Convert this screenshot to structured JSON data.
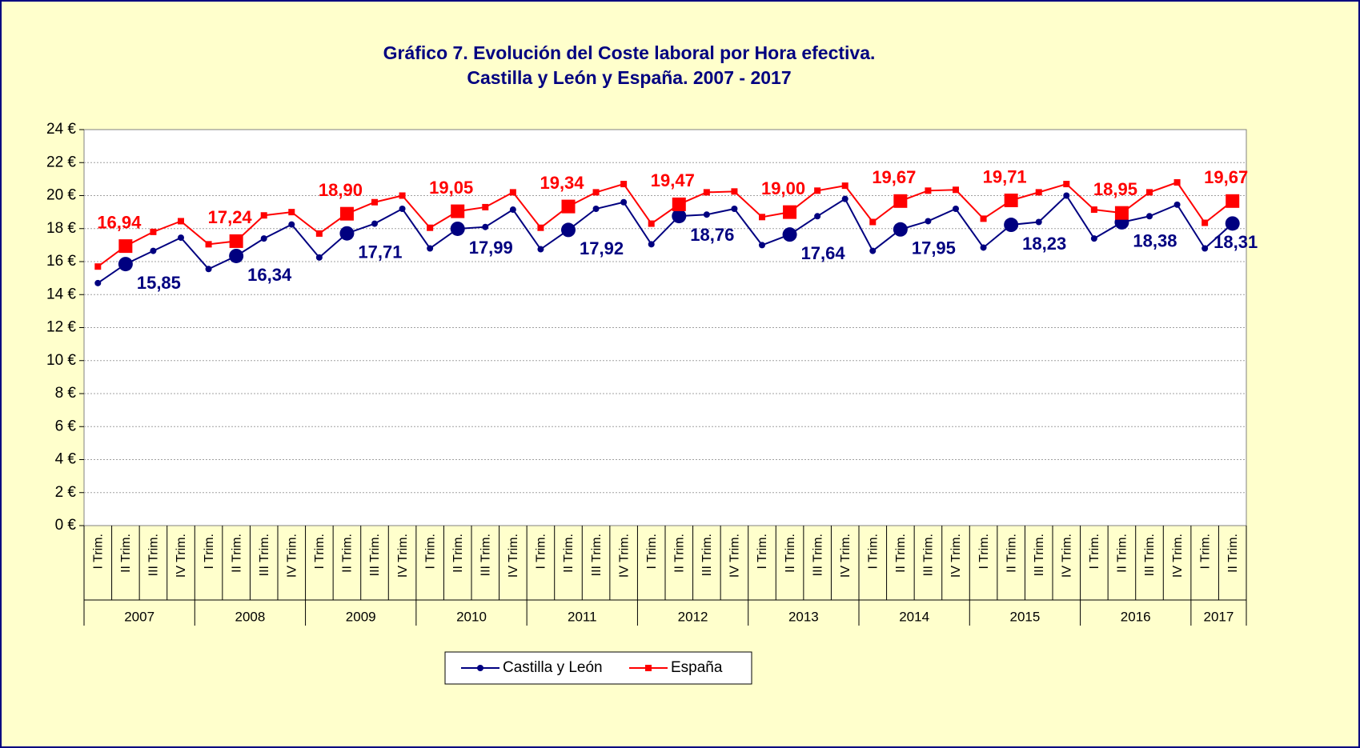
{
  "chart_data": {
    "type": "line",
    "title": "Gráfico 7. Evolución del Coste laboral por Hora efectiva.",
    "subtitle": "Castilla y León y España. 2007 - 2017",
    "categories": [
      "I Trim.",
      "II Trim.",
      "III Trim.",
      "IV Trim.",
      "I Trim.",
      "II Trim.",
      "III Trim.",
      "IV Trim.",
      "I Trim.",
      "II Trim.",
      "III Trim.",
      "IV Trim.",
      "I Trim.",
      "II Trim.",
      "III Trim.",
      "IV Trim.",
      "I Trim.",
      "II Trim.",
      "III Trim.",
      "IV Trim.",
      "I Trim.",
      "II Trim.",
      "III Trim.",
      "IV Trim.",
      "I Trim.",
      "II Trim.",
      "III Trim.",
      "IV Trim.",
      "I Trim.",
      "II Trim.",
      "III Trim.",
      "IV Trim.",
      "I Trim.",
      "II Trim.",
      "III Trim.",
      "IV Trim.",
      "I Trim.",
      "II Trim.",
      "III Trim.",
      "IV Trim.",
      "I Trim.",
      "II Trim."
    ],
    "year_groups": [
      "2007",
      "2008",
      "2009",
      "2010",
      "2011",
      "2012",
      "2013",
      "2014",
      "2015",
      "2016",
      "2017"
    ],
    "series": [
      {
        "name": "Castilla y León",
        "color": "#000080",
        "values": [
          14.7,
          15.85,
          16.65,
          17.45,
          15.55,
          16.34,
          17.4,
          18.25,
          16.25,
          17.71,
          18.3,
          19.2,
          16.8,
          17.99,
          18.1,
          19.15,
          16.75,
          17.92,
          19.2,
          19.6,
          17.05,
          18.76,
          18.85,
          19.2,
          17.0,
          17.64,
          18.75,
          19.8,
          16.65,
          17.95,
          18.45,
          19.2,
          16.85,
          18.23,
          18.4,
          20.0,
          17.4,
          18.38,
          18.75,
          19.45,
          16.8,
          18.31
        ],
        "value_labels": [
          null,
          "15,85",
          null,
          null,
          null,
          "16,34",
          null,
          null,
          null,
          "17,71",
          null,
          null,
          null,
          "17,99",
          null,
          null,
          null,
          "17,92",
          null,
          null,
          null,
          "18,76",
          null,
          null,
          null,
          "17,64",
          null,
          null,
          null,
          "17,95",
          null,
          null,
          null,
          "18,23",
          null,
          null,
          null,
          "18,38",
          null,
          null,
          null,
          "18,31"
        ]
      },
      {
        "name": "España",
        "color": "#ff0000",
        "values": [
          15.7,
          16.94,
          17.8,
          18.45,
          17.05,
          17.24,
          18.8,
          19.0,
          17.7,
          18.9,
          19.6,
          20.0,
          18.05,
          19.05,
          19.3,
          20.2,
          18.05,
          19.34,
          20.2,
          20.7,
          18.3,
          19.47,
          20.2,
          20.25,
          18.7,
          19.0,
          20.3,
          20.6,
          18.4,
          19.67,
          20.3,
          20.35,
          18.6,
          19.71,
          20.2,
          20.7,
          19.15,
          18.95,
          20.2,
          20.8,
          18.35,
          19.67
        ],
        "value_labels": [
          null,
          "16,94",
          null,
          null,
          null,
          "17,24",
          null,
          null,
          null,
          "18,90",
          null,
          null,
          null,
          "19,05",
          null,
          null,
          null,
          "19,34",
          null,
          null,
          null,
          "19,47",
          null,
          null,
          null,
          "19,00",
          null,
          null,
          null,
          "19,67",
          null,
          null,
          null,
          "19,71",
          null,
          null,
          null,
          "18,95",
          null,
          null,
          null,
          "19,67"
        ]
      }
    ],
    "ylim": [
      0,
      24
    ],
    "yticks": [
      {
        "value": 0,
        "label": "0 €"
      },
      {
        "value": 2,
        "label": "2 €"
      },
      {
        "value": 4,
        "label": "4 €"
      },
      {
        "value": 6,
        "label": "6 €"
      },
      {
        "value": 8,
        "label": "8 €"
      },
      {
        "value": 10,
        "label": "10 €"
      },
      {
        "value": 12,
        "label": "12 €"
      },
      {
        "value": 14,
        "label": "14 €"
      },
      {
        "value": 16,
        "label": "16 €"
      },
      {
        "value": 18,
        "label": "18 €"
      },
      {
        "value": 20,
        "label": "20 €"
      },
      {
        "value": 22,
        "label": "22 €"
      },
      {
        "value": 24,
        "label": "24 €"
      }
    ],
    "grid": true,
    "legend": "bottom"
  }
}
